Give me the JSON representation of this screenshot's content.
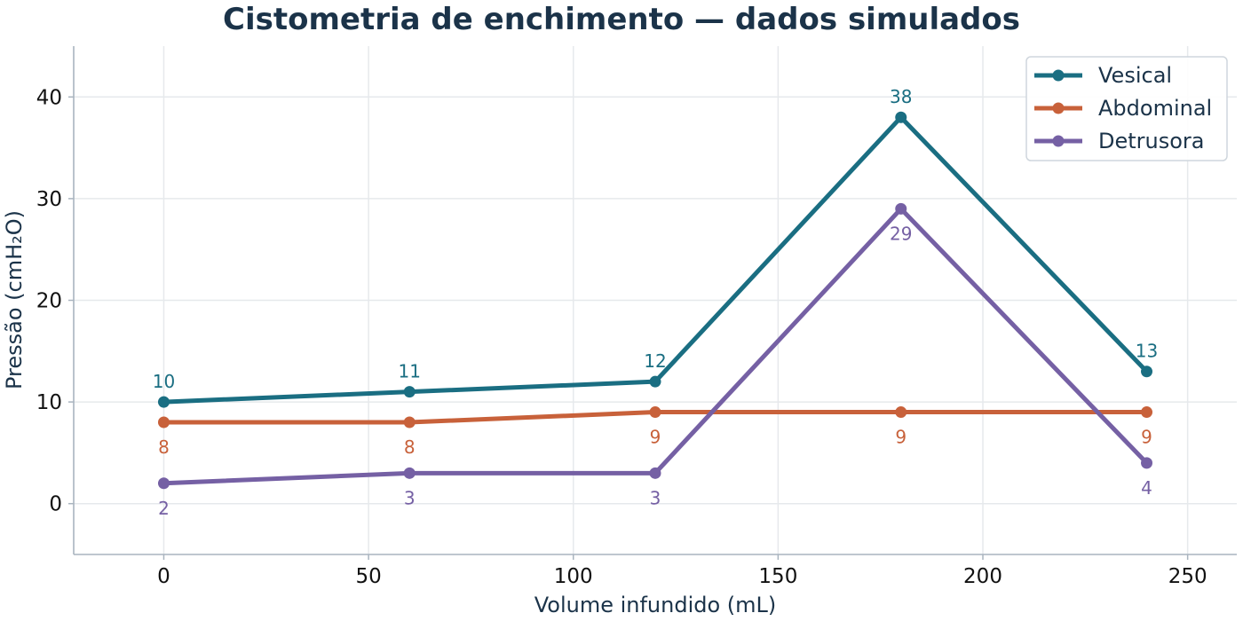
{
  "chart_data": {
    "type": "line",
    "title": "Cistometria de enchimento — dados simulados",
    "xlabel": "Volume infundido (mL)",
    "ylabel": "Pressão (cmH₂O)",
    "x": [
      0,
      60,
      120,
      180,
      240
    ],
    "xlim": [
      -22,
      262
    ],
    "ylim": [
      -5,
      45
    ],
    "xticks": [
      0,
      50,
      100,
      150,
      200,
      250
    ],
    "yticks": [
      0,
      10,
      20,
      30,
      40
    ],
    "grid": true,
    "legend_position": "top-right",
    "series": [
      {
        "name": "Vesical",
        "values": [
          10,
          11,
          12,
          38,
          13
        ],
        "color": "#1a6e82",
        "label_position": "above"
      },
      {
        "name": "Abdominal",
        "values": [
          8,
          8,
          9,
          9,
          9
        ],
        "color": "#c8613a",
        "label_position": "below"
      },
      {
        "name": "Detrusora",
        "values": [
          2,
          3,
          3,
          29,
          4
        ],
        "color": "#7560a4",
        "label_position": "below"
      }
    ]
  }
}
